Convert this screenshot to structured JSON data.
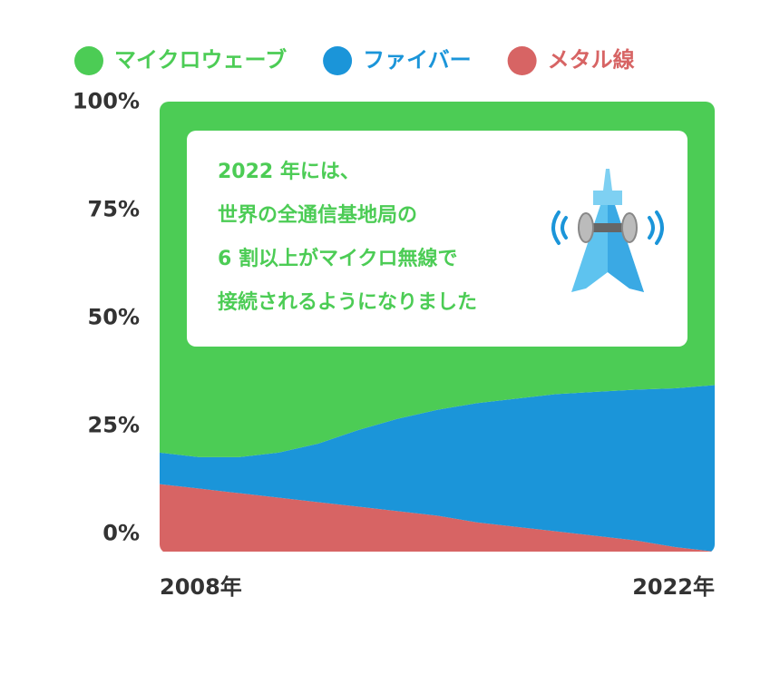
{
  "chart_data": {
    "type": "stacked-area",
    "categories": [
      "2008年",
      null,
      null,
      null,
      null,
      null,
      null,
      null,
      null,
      null,
      null,
      null,
      null,
      null,
      "2022年"
    ],
    "series": [
      {
        "name": "メタル線",
        "color": "#d76464",
        "values": [
          15,
          14,
          13,
          12,
          11,
          10,
          9,
          8,
          6.5,
          5.5,
          4.5,
          3.5,
          2.5,
          1,
          0
        ]
      },
      {
        "name": "ファイバー",
        "color": "#1b95d9",
        "values": [
          7,
          7,
          8,
          10,
          13,
          17,
          20.5,
          23.5,
          26.5,
          28.5,
          30.5,
          32,
          33.5,
          35.3,
          37
        ]
      },
      {
        "name": "マイクロウェーブ",
        "color": "#4ccc55",
        "values": [
          78,
          79,
          79,
          78,
          76,
          73,
          70.5,
          68.5,
          67,
          66,
          65,
          64.5,
          64,
          63.7,
          63
        ]
      }
    ],
    "legend_order": [
      2,
      1,
      0
    ],
    "ylim": [
      0,
      100
    ],
    "yticks": [
      {
        "value": 0,
        "label": "0%"
      },
      {
        "value": 25,
        "label": "25%"
      },
      {
        "value": 50,
        "label": "50%"
      },
      {
        "value": 75,
        "label": "75%"
      },
      {
        "value": 100,
        "label": "100%"
      }
    ],
    "annotation": [
      "2022 年には、",
      "世界の全通信基地局の",
      "6 割以上がマイクロ無線で",
      "接続されるようになりました"
    ]
  }
}
